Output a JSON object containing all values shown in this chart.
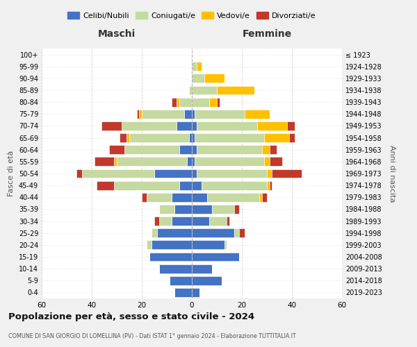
{
  "age_groups": [
    "0-4",
    "5-9",
    "10-14",
    "15-19",
    "20-24",
    "25-29",
    "30-34",
    "35-39",
    "40-44",
    "45-49",
    "50-54",
    "55-59",
    "60-64",
    "65-69",
    "70-74",
    "75-79",
    "80-84",
    "85-89",
    "90-94",
    "95-99",
    "100+"
  ],
  "birth_years": [
    "2019-2023",
    "2014-2018",
    "2009-2013",
    "2004-2008",
    "1999-2003",
    "1994-1998",
    "1989-1993",
    "1984-1988",
    "1979-1983",
    "1974-1978",
    "1969-1973",
    "1964-1968",
    "1959-1963",
    "1954-1958",
    "1949-1953",
    "1944-1948",
    "1939-1943",
    "1934-1938",
    "1929-1933",
    "1924-1928",
    "≤ 1923"
  ],
  "colors": {
    "celibi": "#4472c4",
    "coniugati": "#c5d9a0",
    "vedovi": "#ffc000",
    "divorziati": "#c0392b"
  },
  "maschi": {
    "celibi": [
      7,
      9,
      13,
      17,
      16,
      14,
      8,
      7,
      8,
      5,
      15,
      2,
      5,
      1,
      6,
      3,
      0,
      0,
      0,
      0,
      0
    ],
    "coniugati": [
      0,
      0,
      0,
      0,
      2,
      2,
      5,
      6,
      10,
      26,
      29,
      28,
      22,
      24,
      22,
      17,
      5,
      1,
      0,
      0,
      0
    ],
    "vedovi": [
      0,
      0,
      0,
      0,
      0,
      0,
      0,
      0,
      0,
      0,
      0,
      1,
      0,
      1,
      0,
      1,
      1,
      0,
      0,
      0,
      0
    ],
    "divorziati": [
      0,
      0,
      0,
      0,
      0,
      0,
      2,
      0,
      2,
      7,
      2,
      8,
      6,
      3,
      8,
      1,
      2,
      0,
      0,
      0,
      0
    ]
  },
  "femmine": {
    "celibi": [
      3,
      12,
      8,
      19,
      13,
      17,
      7,
      8,
      6,
      4,
      2,
      1,
      2,
      1,
      2,
      1,
      0,
      0,
      0,
      0,
      0
    ],
    "coniugati": [
      0,
      0,
      0,
      0,
      1,
      2,
      7,
      9,
      21,
      26,
      28,
      28,
      26,
      28,
      24,
      20,
      7,
      10,
      5,
      2,
      0
    ],
    "vedovi": [
      0,
      0,
      0,
      0,
      0,
      0,
      0,
      0,
      1,
      1,
      2,
      2,
      3,
      10,
      12,
      10,
      3,
      15,
      8,
      2,
      0
    ],
    "divorziati": [
      0,
      0,
      0,
      0,
      0,
      2,
      1,
      2,
      2,
      1,
      12,
      5,
      3,
      2,
      3,
      0,
      1,
      0,
      0,
      0,
      0
    ]
  },
  "title": "Popolazione per età, sesso e stato civile - 2024",
  "subtitle": "COMUNE DI SAN GIORGIO DI LOMELLINA (PV) - Dati ISTAT 1° gennaio 2024 - Elaborazione TUTTITALIA.IT",
  "xlabel_left": "Maschi",
  "xlabel_right": "Femmine",
  "ylabel_left": "Fasce di età",
  "ylabel_right": "Anni di nascita",
  "xlim": 60,
  "legend_labels": [
    "Celibi/Nubili",
    "Coniugati/e",
    "Vedovi/e",
    "Divorziati/e"
  ],
  "background_color": "#f0f0f0",
  "plot_background": "#ffffff",
  "grid_color": "#cccccc"
}
